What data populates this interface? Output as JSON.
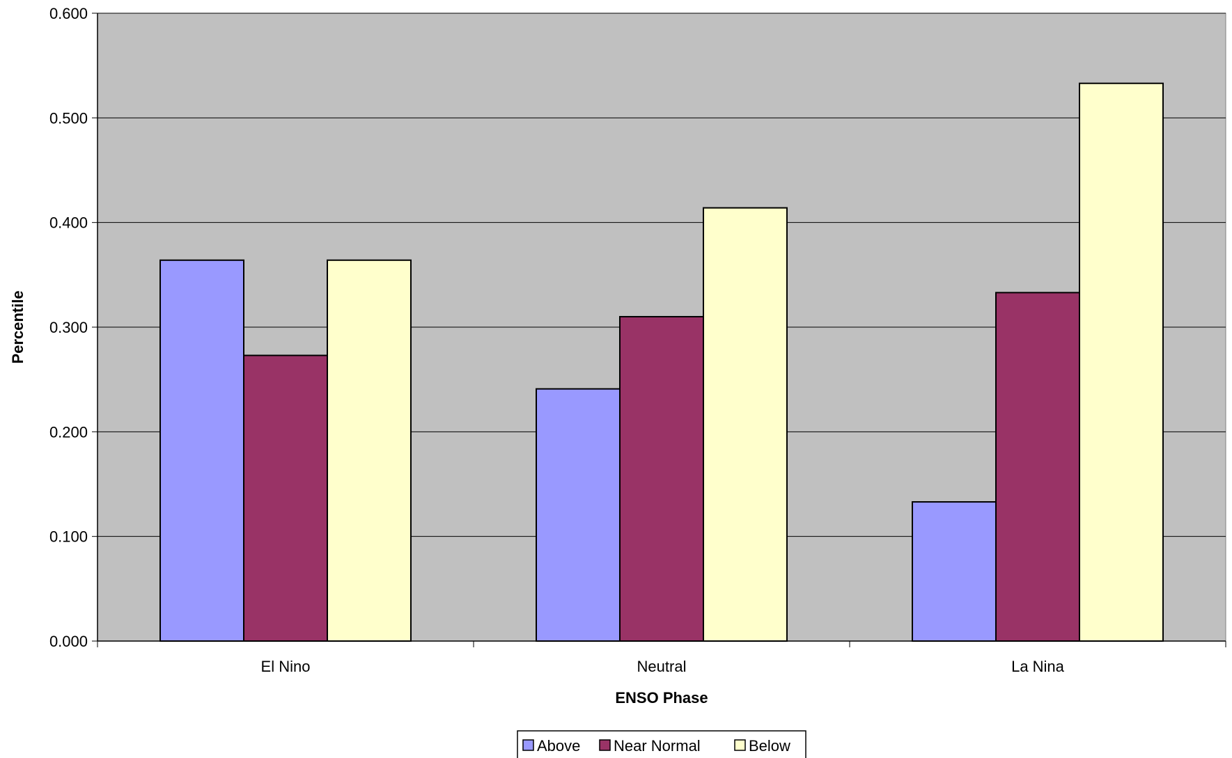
{
  "chart_data": {
    "type": "bar",
    "title": "",
    "xlabel": "ENSO Phase",
    "ylabel": "Percentile",
    "categories": [
      "El Nino",
      "Neutral",
      "La Nina"
    ],
    "series": [
      {
        "name": "Above",
        "color": "#9999ff",
        "values": [
          0.364,
          0.241,
          0.133
        ]
      },
      {
        "name": "Near Normal",
        "color": "#993366",
        "values": [
          0.273,
          0.31,
          0.333
        ]
      },
      {
        "name": "Below",
        "color": "#ffffcc",
        "values": [
          0.364,
          0.414,
          0.533
        ]
      }
    ],
    "ylim": [
      0,
      0.6
    ],
    "yticks": [
      "0.000",
      "0.100",
      "0.200",
      "0.300",
      "0.400",
      "0.500",
      "0.600"
    ],
    "grid": true,
    "plot_background": "#c0c0c0",
    "legend_position": "bottom"
  }
}
